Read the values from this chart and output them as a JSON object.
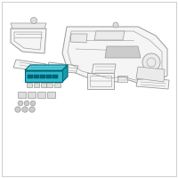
{
  "bg_color": "#ffffff",
  "border_color": "#bbbbbb",
  "highlight_color": "#2bb8cc",
  "highlight_top": "#55d0e0",
  "highlight_side": "#1a9aaa",
  "highlight_dark": "#006677",
  "line_color": "#999999",
  "fill_color": "#f5f5f5",
  "fig_w": 2.0,
  "fig_h": 2.0,
  "dpi": 100
}
